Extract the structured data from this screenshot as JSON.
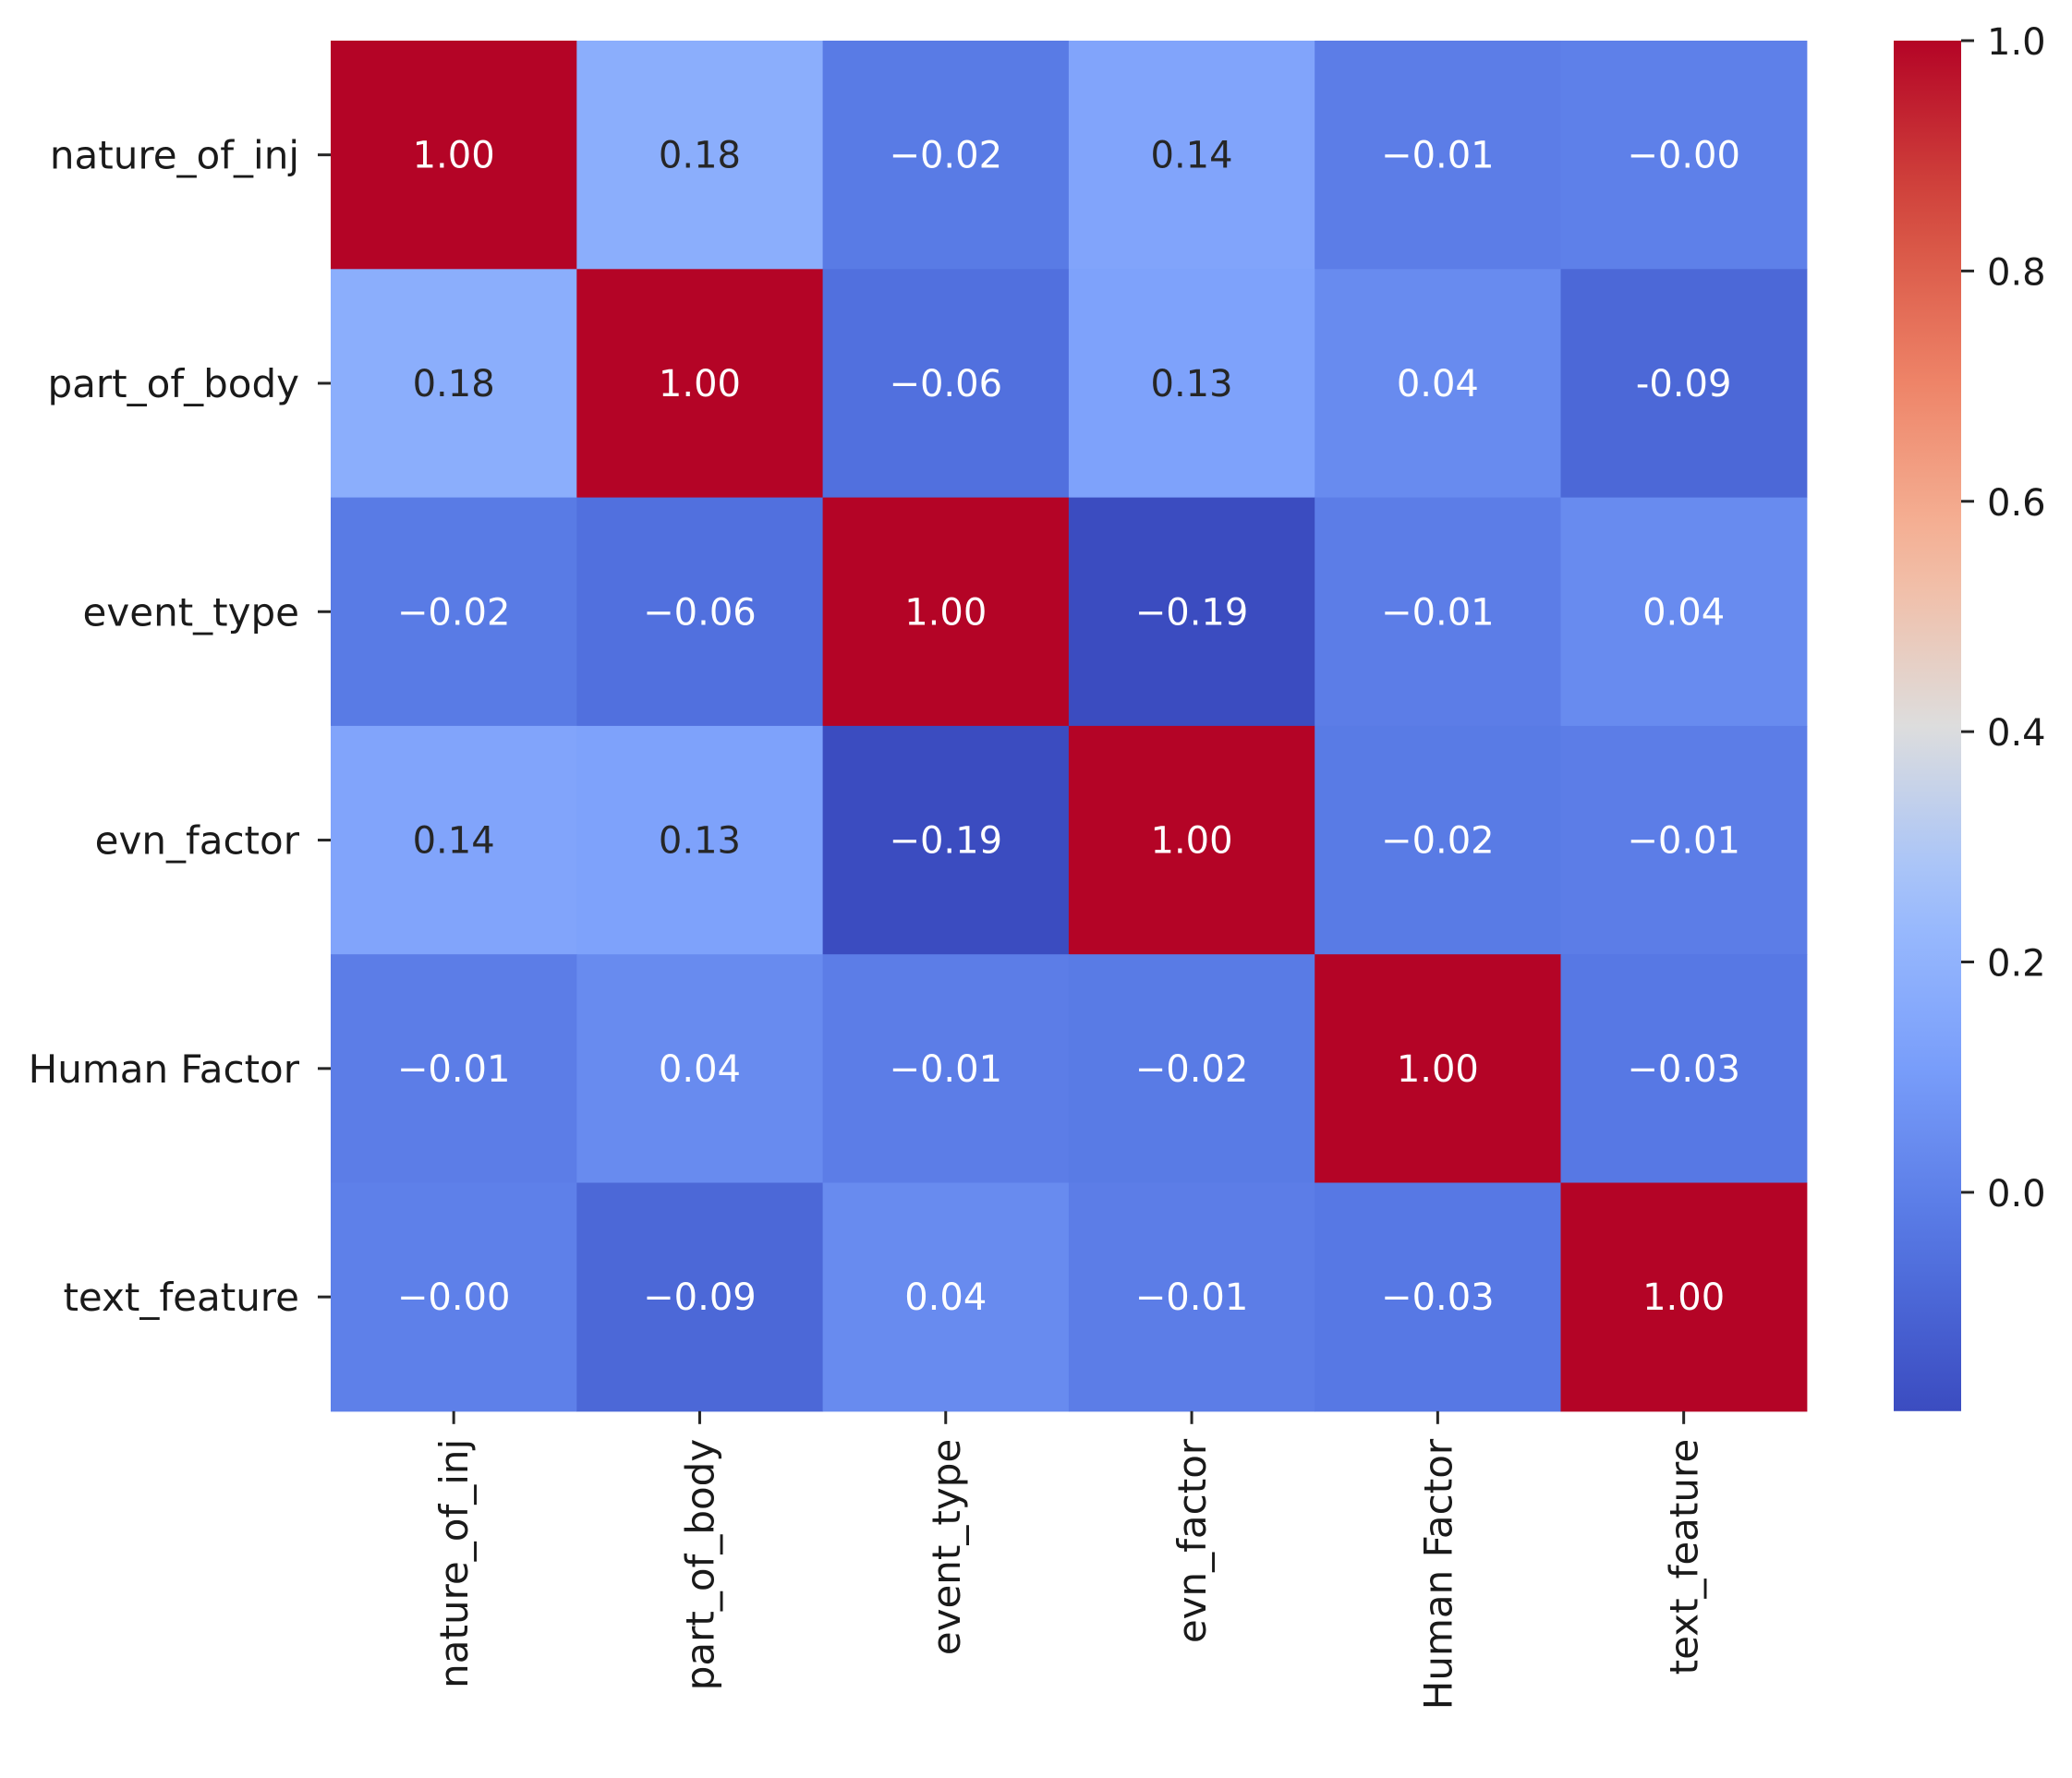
{
  "chart_data": {
    "type": "heatmap",
    "title": "",
    "xlabel": "",
    "ylabel": "",
    "colormap": "coolwarm",
    "value_range": [
      -0.19,
      1.0
    ],
    "variables": [
      "nature_of_inj",
      "part_of_body",
      "event_type",
      "evn_factor",
      "Human Factor",
      "text_feature"
    ],
    "matrix": [
      [
        1.0,
        0.18,
        -0.02,
        0.14,
        -0.01,
        -0.0
      ],
      [
        0.18,
        1.0,
        -0.06,
        0.13,
        0.04,
        -0.09
      ],
      [
        -0.02,
        -0.06,
        1.0,
        -0.19,
        -0.01,
        0.04
      ],
      [
        0.14,
        0.13,
        -0.19,
        1.0,
        -0.02,
        -0.01
      ],
      [
        -0.01,
        0.04,
        -0.01,
        -0.02,
        1.0,
        -0.03
      ],
      [
        -0.0,
        -0.09,
        0.04,
        -0.01,
        -0.03,
        1.0
      ]
    ],
    "cell_labels": [
      [
        "1.00",
        "0.18",
        "−0.02",
        "0.14",
        "−0.01",
        "−0.00"
      ],
      [
        "0.18",
        "1.00",
        "−0.06",
        "0.13",
        "0.04",
        "-0.09"
      ],
      [
        "−0.02",
        "−0.06",
        "1.00",
        "−0.19",
        "−0.01",
        "0.04"
      ],
      [
        "0.14",
        "0.13",
        "−0.19",
        "1.00",
        "−0.02",
        "−0.01"
      ],
      [
        "−0.01",
        "0.04",
        "−0.01",
        "−0.02",
        "1.00",
        "−0.03"
      ],
      [
        "−0.00",
        "−0.09",
        "0.04",
        "−0.01",
        "−0.03",
        "1.00"
      ]
    ],
    "colorbar": {
      "ticks": [
        0.0,
        0.2,
        0.4,
        0.6,
        0.8,
        1.0
      ],
      "tick_labels": [
        "0.0",
        "0.2",
        "0.4",
        "0.6",
        "0.8",
        "1.0"
      ]
    }
  }
}
